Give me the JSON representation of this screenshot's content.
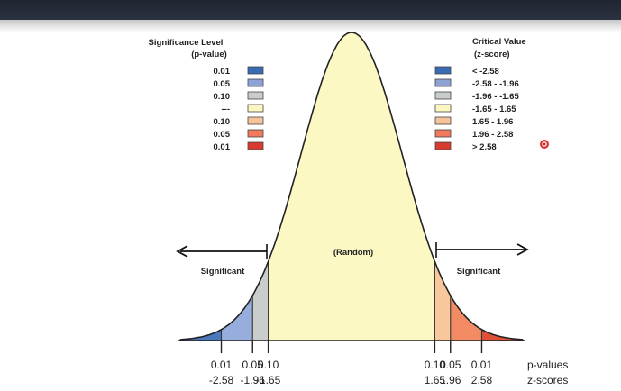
{
  "legend_left": {
    "title_line1": "Significance Level",
    "title_line2": "(p-value)",
    "items": [
      {
        "label": "0.01",
        "color": "#3a6cb4"
      },
      {
        "label": "0.05",
        "color": "#8da3d6"
      },
      {
        "label": "0.10",
        "color": "#c8cccc"
      },
      {
        "label": "---",
        "color": "#fcf7c0"
      },
      {
        "label": "0.10",
        "color": "#f7c49a"
      },
      {
        "label": "0.05",
        "color": "#f07a5c"
      },
      {
        "label": "0.01",
        "color": "#d93a30"
      }
    ]
  },
  "legend_right": {
    "title_line1": "Critical Value",
    "title_line2": "(z-score)",
    "items": [
      {
        "label": "< -2.58",
        "color": "#3a6cb4"
      },
      {
        "label": "-2.58 - -1.96",
        "color": "#8da3d6"
      },
      {
        "label": "-1.96 - -1.65",
        "color": "#c8cccc"
      },
      {
        "label": "-1.65 - 1.65",
        "color": "#fcf7c0"
      },
      {
        "label": "1.65 - 1.96",
        "color": "#f7c49a"
      },
      {
        "label": "1.96 - 2.58",
        "color": "#f07a5c"
      },
      {
        "label": "> 2.58",
        "color": "#d93a30"
      }
    ]
  },
  "curve": {
    "center_label": "(Random)",
    "left_label": "Significant",
    "right_label": "Significant",
    "regions": [
      {
        "from": -4.0,
        "to": -2.58,
        "color": "#4a78bc"
      },
      {
        "from": -2.58,
        "to": -1.96,
        "color": "#97aedd"
      },
      {
        "from": -1.96,
        "to": -1.65,
        "color": "#c9cdcb"
      },
      {
        "from": -1.65,
        "to": 1.65,
        "color": "#fcf8c4"
      },
      {
        "from": 1.65,
        "to": 1.96,
        "color": "#f8c89c"
      },
      {
        "from": 1.96,
        "to": 2.58,
        "color": "#f28a64"
      },
      {
        "from": 2.58,
        "to": 4.0,
        "color": "#e05038"
      }
    ]
  },
  "axis": {
    "ticks": [
      {
        "z": -2.58,
        "p_label": "0.01",
        "z_label": "-2.58"
      },
      {
        "z": -1.96,
        "p_label": "0.05",
        "z_label": "-1.96"
      },
      {
        "z": -1.65,
        "p_label": "0.10",
        "z_label": "-1.65"
      },
      {
        "z": 1.65,
        "p_label": "0.10",
        "z_label": "1.65"
      },
      {
        "z": 1.96,
        "p_label": "0.05",
        "z_label": "1.96"
      },
      {
        "z": 2.58,
        "p_label": "0.01",
        "z_label": "2.58"
      }
    ],
    "p_row_label": "p-values",
    "z_row_label": "z-scores"
  }
}
